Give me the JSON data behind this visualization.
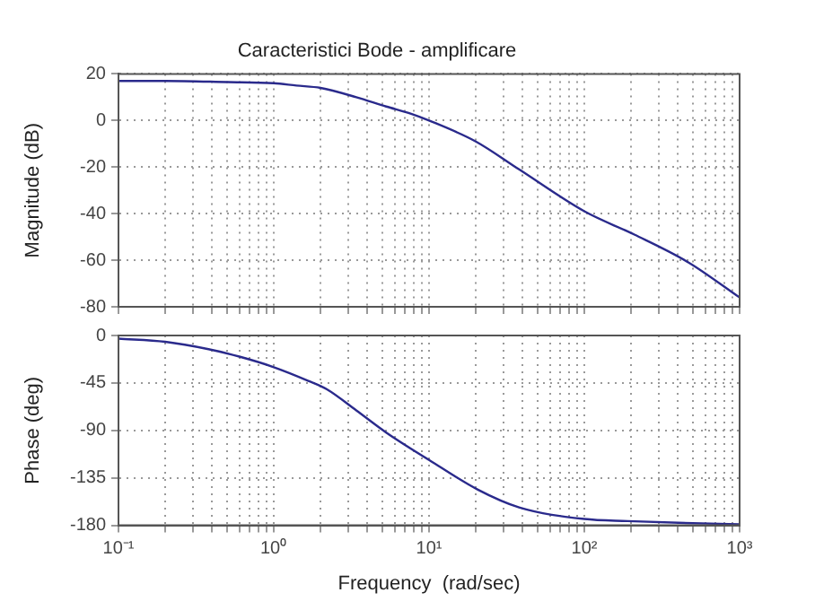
{
  "chart_data": [
    {
      "type": "line",
      "title": "Caracteristici Bode - amplificare",
      "ylabel": "Magnitude (dB)",
      "log": "x",
      "grid": true,
      "tick_labels": "y",
      "x": [
        0.1,
        0.2,
        0.5,
        1,
        1.4,
        2,
        3.4,
        5.3,
        7.6,
        10,
        20,
        38,
        100,
        210,
        470,
        1000
      ],
      "series": [
        {
          "color": "#2a2a8c",
          "values": [
            17,
            17,
            16.5,
            16,
            15,
            14,
            10,
            6,
            3,
            0,
            -9,
            -21,
            -39,
            -49,
            -61,
            -76
          ]
        }
      ],
      "xlim": [
        0.1,
        1000
      ],
      "ylim": [
        -80,
        20
      ],
      "yticks": [
        -80,
        -60,
        -40,
        -20,
        0,
        20
      ],
      "xticks": [
        {
          "value": 0.1,
          "label": null
        },
        {
          "value": 0.2,
          "label": null
        },
        {
          "value": 0.3,
          "label": null
        },
        {
          "value": 0.4,
          "label": null
        },
        {
          "value": 0.5,
          "label": null
        },
        {
          "value": 0.6,
          "label": null
        },
        {
          "value": 0.7,
          "label": null
        },
        {
          "value": 0.8,
          "label": null
        },
        {
          "value": 0.9,
          "label": null
        },
        {
          "value": 1,
          "label": null
        },
        {
          "value": 2,
          "label": null
        },
        {
          "value": 3,
          "label": null
        },
        {
          "value": 4,
          "label": null
        },
        {
          "value": 5,
          "label": null
        },
        {
          "value": 6,
          "label": null
        },
        {
          "value": 7,
          "label": null
        },
        {
          "value": 8,
          "label": null
        },
        {
          "value": 9,
          "label": null
        },
        {
          "value": 10,
          "label": null
        },
        {
          "value": 20,
          "label": null
        },
        {
          "value": 30,
          "label": null
        },
        {
          "value": 40,
          "label": null
        },
        {
          "value": 50,
          "label": null
        },
        {
          "value": 60,
          "label": null
        },
        {
          "value": 70,
          "label": null
        },
        {
          "value": 80,
          "label": null
        },
        {
          "value": 90,
          "label": null
        },
        {
          "value": 100,
          "label": null
        },
        {
          "value": 200,
          "label": null
        },
        {
          "value": 300,
          "label": null
        },
        {
          "value": 400,
          "label": null
        },
        {
          "value": 500,
          "label": null
        },
        {
          "value": 600,
          "label": null
        },
        {
          "value": 700,
          "label": null
        },
        {
          "value": 800,
          "label": null
        },
        {
          "value": 900,
          "label": null
        },
        {
          "value": 1000,
          "label": null
        }
      ]
    },
    {
      "type": "line",
      "xlabel": "Frequency  (rad/sec)",
      "ylabel": "Phase (deg)",
      "log": "x",
      "grid": true,
      "x": [
        0.1,
        0.2,
        0.38,
        0.6,
        1,
        1.67,
        2.2,
        3.4,
        5.3,
        10,
        20.5,
        38,
        100,
        190,
        500,
        1000
      ],
      "series": [
        {
          "color": "#2a2a8c",
          "values": [
            -3,
            -6,
            -13,
            -20,
            -30,
            -43,
            -51,
            -71,
            -92,
            -118,
            -146,
            -163,
            -174,
            -176,
            -178,
            -179
          ]
        }
      ],
      "xlim": [
        0.1,
        1000
      ],
      "ylim": [
        -180,
        0
      ],
      "yticks": [
        -180,
        -135,
        -90,
        -45,
        0
      ],
      "xticks": [
        {
          "value": 0.1,
          "label": "10⁻¹"
        },
        {
          "value": 0.2,
          "label": null
        },
        {
          "value": 0.3,
          "label": null
        },
        {
          "value": 0.4,
          "label": null
        },
        {
          "value": 0.5,
          "label": null
        },
        {
          "value": 0.6,
          "label": null
        },
        {
          "value": 0.7,
          "label": null
        },
        {
          "value": 0.8,
          "label": null
        },
        {
          "value": 0.9,
          "label": null
        },
        {
          "value": 1,
          "label": "10⁰"
        },
        {
          "value": 2,
          "label": null
        },
        {
          "value": 3,
          "label": null
        },
        {
          "value": 4,
          "label": null
        },
        {
          "value": 5,
          "label": null
        },
        {
          "value": 6,
          "label": null
        },
        {
          "value": 7,
          "label": null
        },
        {
          "value": 8,
          "label": null
        },
        {
          "value": 9,
          "label": null
        },
        {
          "value": 10,
          "label": "10¹"
        },
        {
          "value": 20,
          "label": null
        },
        {
          "value": 30,
          "label": null
        },
        {
          "value": 40,
          "label": null
        },
        {
          "value": 50,
          "label": null
        },
        {
          "value": 60,
          "label": null
        },
        {
          "value": 70,
          "label": null
        },
        {
          "value": 80,
          "label": null
        },
        {
          "value": 90,
          "label": null
        },
        {
          "value": 100,
          "label": "10²"
        },
        {
          "value": 200,
          "label": null
        },
        {
          "value": 300,
          "label": null
        },
        {
          "value": 400,
          "label": null
        },
        {
          "value": 500,
          "label": null
        },
        {
          "value": 600,
          "label": null
        },
        {
          "value": 700,
          "label": null
        },
        {
          "value": 800,
          "label": null
        },
        {
          "value": 900,
          "label": null
        },
        {
          "value": 1000,
          "label": "10³"
        }
      ]
    }
  ]
}
